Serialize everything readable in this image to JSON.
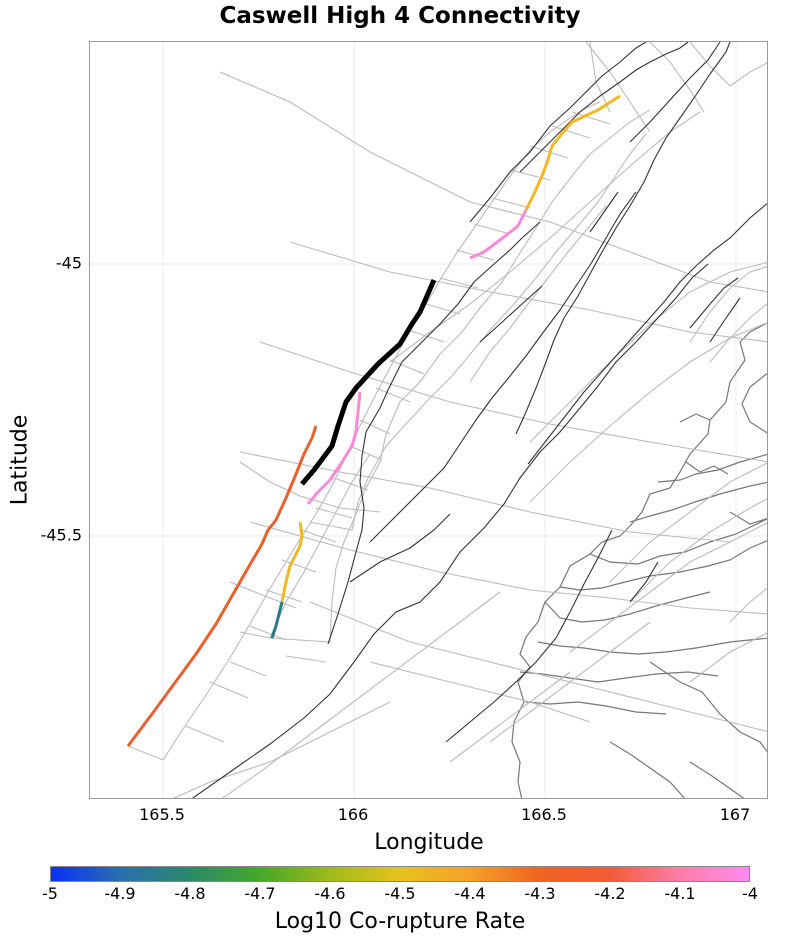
{
  "title": "Caswell High 4 Connectivity",
  "xlabel": "Longitude",
  "ylabel": "Latitude",
  "x_ticks": [
    "165.5",
    "166",
    "166.5",
    "167"
  ],
  "y_ticks": [
    "-45",
    "-45.5"
  ],
  "colorbar": {
    "title": "Log10 Co-rupture Rate",
    "ticks": [
      "-5",
      "-4.9",
      "-4.8",
      "-4.7",
      "-4.6",
      "-4.5",
      "-4.4",
      "-4.3",
      "-4.2",
      "-4.1",
      "-4"
    ],
    "range": [
      -5,
      -4
    ]
  },
  "colors": {
    "source_fault": "#000000",
    "orange_red": "#e8612c",
    "yellow": "#f2b824",
    "pink": "#fb88d8",
    "teal": "#2a7a86",
    "fault_trace": "#333333",
    "fault_outline": "#bbbbbb",
    "coastline": "#777777"
  },
  "chart_data": {
    "type": "map",
    "title": "Caswell High 4 Connectivity",
    "xlabel": "Longitude",
    "ylabel": "Latitude",
    "xlim": [
      165.3,
      167.08
    ],
    "ylim": [
      -45.98,
      -44.59
    ],
    "source_fault": "Caswell High 4",
    "colored_sections": [
      {
        "color_role": "orange_red",
        "log10_rate": -4.25
      },
      {
        "color_role": "yellow",
        "log10_rate": -4.45
      },
      {
        "color_role": "pink",
        "log10_rate": -4.05
      },
      {
        "color_role": "teal",
        "log10_rate": -4.88
      }
    ]
  }
}
